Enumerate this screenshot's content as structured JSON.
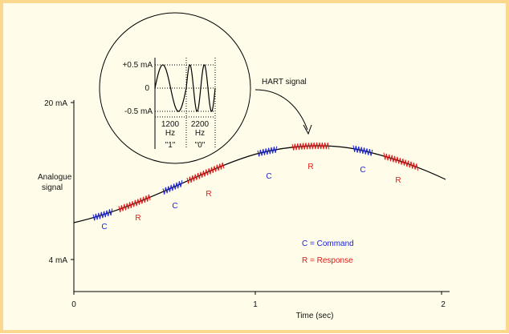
{
  "diagram": {
    "y_axis": {
      "title_lines": [
        "Analogue",
        "signal"
      ],
      "tick_top": "20 mA",
      "tick_bottom": "4 mA"
    },
    "x_axis": {
      "title": "Time (sec)",
      "ticks": [
        "0",
        "1",
        "2"
      ]
    },
    "hart_label": "HART signal",
    "zoom": {
      "amplitude_labels": [
        "+0.5 mA",
        "0",
        "-0.5 mA"
      ],
      "freq_1": [
        "1200",
        "Hz"
      ],
      "freq_2": [
        "2200",
        "Hz"
      ],
      "bit_1": "\"1\"",
      "bit_2": "\"0\""
    },
    "markers": [
      {
        "letter": "C",
        "kind": "command"
      },
      {
        "letter": "R",
        "kind": "response"
      },
      {
        "letter": "C",
        "kind": "command"
      },
      {
        "letter": "R",
        "kind": "response"
      },
      {
        "letter": "C",
        "kind": "command"
      },
      {
        "letter": "R",
        "kind": "response"
      },
      {
        "letter": "C",
        "kind": "command"
      },
      {
        "letter": "R",
        "kind": "response"
      }
    ],
    "legend": {
      "command": "C = Command",
      "response": "R = Response"
    },
    "colors": {
      "command": "#1b22d8",
      "response": "#e01818",
      "frame_border": "#fbd88e",
      "background": "#fffde9"
    }
  }
}
